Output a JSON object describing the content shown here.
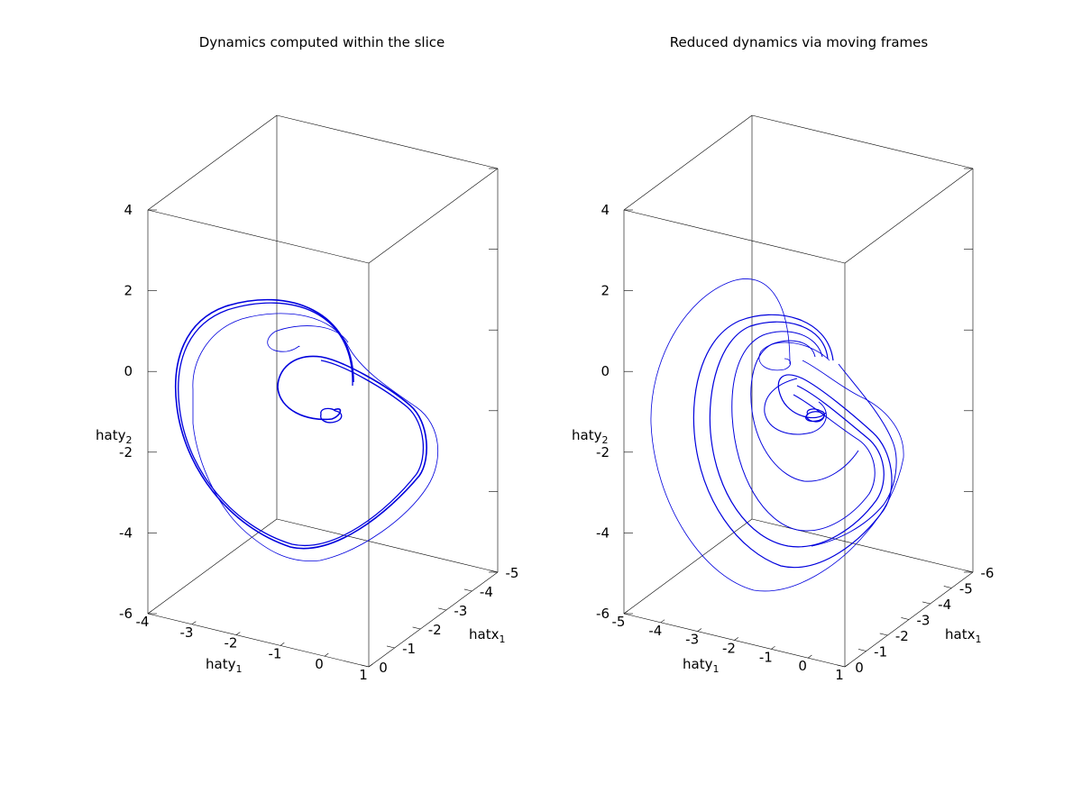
{
  "chart_data": [
    {
      "type": "line",
      "title": "Dynamics computed within the slice",
      "xlabel_base": "haty",
      "xlabel_sub": "1",
      "ylabel_base": "hatx",
      "ylabel_sub": "1",
      "zlabel_base": "haty",
      "zlabel_sub": "2",
      "xticks": [
        "-4",
        "-3",
        "-2",
        "-1",
        "0",
        "1"
      ],
      "yticks": [
        "0",
        "-1",
        "-2",
        "-3",
        "-4",
        "-5"
      ],
      "zticks": [
        "4",
        "2",
        "0",
        "-2",
        "-4",
        "-6"
      ],
      "xlim": [
        -4,
        1
      ],
      "ylim": [
        0,
        -5
      ],
      "zlim": [
        -6,
        4
      ],
      "grid": false,
      "series": [
        {
          "color": "#0000dd",
          "kind": "limit-cycle attractor"
        }
      ]
    },
    {
      "type": "line",
      "title": "Reduced dynamics via moving frames",
      "xlabel_base": "haty",
      "xlabel_sub": "1",
      "ylabel_base": "hatx",
      "ylabel_sub": "1",
      "zlabel_base": "haty",
      "zlabel_sub": "2",
      "xticks": [
        "-5",
        "-4",
        "-3",
        "-2",
        "-1",
        "0",
        "1"
      ],
      "yticks": [
        "0",
        "-1",
        "-2",
        "-3",
        "-4",
        "-5",
        "-6"
      ],
      "zticks": [
        "4",
        "2",
        "0",
        "-2",
        "-4",
        "-6"
      ],
      "xlim": [
        -5,
        1
      ],
      "ylim": [
        0,
        -6
      ],
      "zlim": [
        -6,
        4
      ],
      "grid": false,
      "series": [
        {
          "color": "#0000dd",
          "kind": "chaotic attractor"
        }
      ]
    }
  ]
}
